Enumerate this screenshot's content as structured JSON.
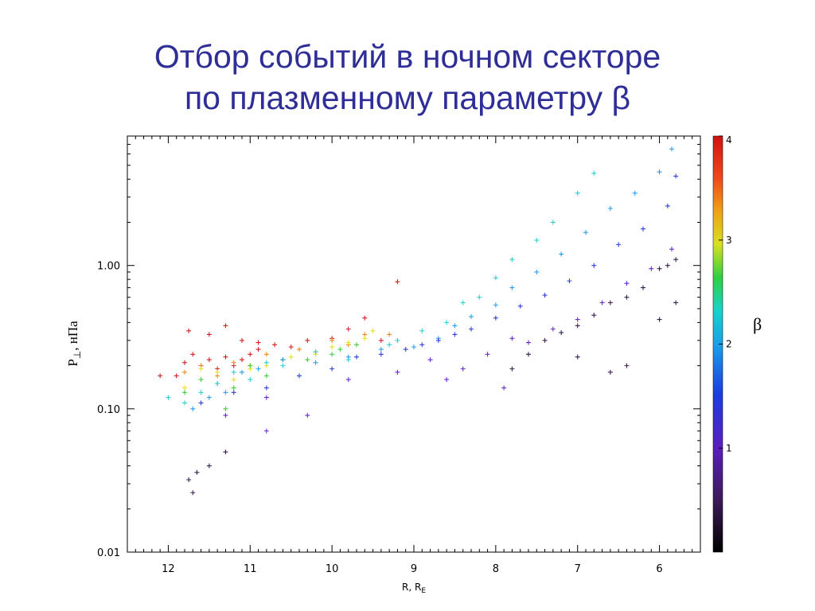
{
  "title_line1": "Отбор событий в ночном секторе",
  "title_line2": "по плазменному параметру β",
  "colors": {
    "title": "#2e2e96"
  },
  "chart_data": {
    "type": "scatter",
    "marker": "plus",
    "x_axis": {
      "label": "R, R_E",
      "label_main": "R, R",
      "label_sub": "E",
      "reversed": true,
      "range": [
        12.5,
        5.5
      ],
      "ticks": [
        12,
        11,
        10,
        9,
        8,
        7,
        6
      ]
    },
    "y_axis": {
      "label": "P⊥, нПа",
      "label_main": "P",
      "label_sub": "⊥",
      "label_rest": ", нПа",
      "scale": "log",
      "range": [
        0.01,
        8
      ],
      "ticks": [
        0.01,
        0.1,
        1.0
      ],
      "tick_labels": [
        "0.01",
        "0.10",
        "1.00"
      ]
    },
    "colorbar": {
      "label": "β",
      "range": [
        0,
        4
      ],
      "ticks": [
        1,
        2,
        3,
        4
      ],
      "tick_labels": [
        "1",
        "2",
        "3",
        "4"
      ]
    },
    "series": [
      {
        "name": "β≈3.6",
        "color": "#d42020",
        "x": [
          12.1,
          11.9,
          11.8,
          11.7,
          11.6,
          11.5,
          11.4,
          11.3,
          11.2,
          11.1,
          11.0,
          10.9,
          10.7,
          10.5,
          10.3,
          10.0,
          9.8,
          9.6,
          9.4,
          9.2,
          11.75,
          11.5,
          11.3,
          11.1,
          10.9
        ],
        "y": [
          0.17,
          0.17,
          0.21,
          0.24,
          0.2,
          0.22,
          0.19,
          0.23,
          0.2,
          0.22,
          0.24,
          0.26,
          0.28,
          0.27,
          0.3,
          0.31,
          0.36,
          0.43,
          0.3,
          0.77,
          0.35,
          0.33,
          0.38,
          0.3,
          0.29
        ]
      },
      {
        "name": "β≈3.0",
        "color": "#f08a1c",
        "x": [
          11.8,
          11.6,
          11.4,
          11.2,
          11.0,
          10.8,
          10.6,
          10.4,
          10.2,
          10.0,
          9.8,
          9.6,
          9.3
        ],
        "y": [
          0.18,
          0.2,
          0.17,
          0.21,
          0.2,
          0.24,
          0.22,
          0.26,
          0.25,
          0.3,
          0.28,
          0.33,
          0.33
        ]
      },
      {
        "name": "β≈2.6",
        "color": "#e8e020",
        "x": [
          11.8,
          11.6,
          11.4,
          11.2,
          11.0,
          10.8,
          10.5,
          10.2,
          10.0,
          9.8,
          9.6,
          9.5
        ],
        "y": [
          0.14,
          0.19,
          0.18,
          0.16,
          0.19,
          0.2,
          0.23,
          0.24,
          0.27,
          0.29,
          0.31,
          0.35
        ]
      },
      {
        "name": "β≈2.2",
        "color": "#3cd23c",
        "x": [
          11.8,
          11.6,
          11.4,
          11.2,
          11.0,
          10.8,
          10.6,
          10.3,
          10.0,
          9.9,
          9.7,
          11.3
        ],
        "y": [
          0.13,
          0.16,
          0.15,
          0.14,
          0.2,
          0.17,
          0.22,
          0.22,
          0.24,
          0.26,
          0.28,
          0.1
        ]
      },
      {
        "name": "β≈1.9",
        "color": "#28d2d2",
        "x": [
          12.0,
          11.8,
          11.6,
          11.4,
          11.2,
          11.0,
          10.8,
          10.6,
          10.2,
          9.8,
          9.3,
          8.9,
          8.4,
          8.0,
          7.8,
          7.5,
          7.3,
          7.0,
          6.8,
          8.2,
          8.6,
          9.2
        ],
        "y": [
          0.12,
          0.11,
          0.13,
          0.15,
          0.18,
          0.16,
          0.21,
          0.2,
          0.25,
          0.22,
          0.28,
          0.35,
          0.55,
          0.82,
          1.1,
          1.5,
          2.0,
          3.2,
          4.4,
          0.6,
          0.4,
          0.3
        ]
      },
      {
        "name": "β≈1.6",
        "color": "#2aa0f0",
        "x": [
          11.7,
          11.5,
          11.3,
          11.1,
          10.9,
          10.6,
          10.2,
          9.8,
          9.4,
          9.0,
          8.7,
          8.5,
          8.3,
          8.0,
          7.8,
          7.5,
          7.2,
          6.9,
          6.6,
          6.3,
          6.0,
          5.85
        ],
        "y": [
          0.1,
          0.12,
          0.13,
          0.18,
          0.19,
          0.22,
          0.21,
          0.23,
          0.26,
          0.27,
          0.31,
          0.38,
          0.44,
          0.53,
          0.7,
          0.9,
          1.2,
          1.7,
          2.5,
          3.2,
          4.5,
          6.5
        ]
      },
      {
        "name": "β≈1.1",
        "color": "#3040e0",
        "x": [
          11.6,
          11.2,
          10.8,
          10.4,
          10.0,
          9.7,
          9.4,
          9.1,
          8.9,
          8.7,
          8.5,
          8.3,
          8.0,
          7.7,
          7.4,
          7.1,
          6.8,
          6.5,
          6.2,
          5.9,
          5.8
        ],
        "y": [
          0.11,
          0.13,
          0.14,
          0.17,
          0.19,
          0.23,
          0.24,
          0.26,
          0.28,
          0.3,
          0.33,
          0.36,
          0.43,
          0.52,
          0.62,
          0.78,
          1.0,
          1.4,
          1.8,
          2.6,
          4.2
        ]
      },
      {
        "name": "β≈0.7",
        "color": "#6a2ccc",
        "x": [
          11.3,
          10.8,
          10.3,
          9.8,
          9.2,
          8.8,
          8.4,
          8.1,
          7.8,
          7.6,
          7.3,
          7.0,
          6.7,
          6.4,
          6.1,
          5.85,
          8.6,
          7.9,
          10.8
        ],
        "y": [
          0.09,
          0.12,
          0.09,
          0.16,
          0.18,
          0.22,
          0.19,
          0.24,
          0.31,
          0.29,
          0.36,
          0.42,
          0.55,
          0.75,
          0.95,
          1.3,
          0.16,
          0.14,
          0.07
        ]
      },
      {
        "name": "β≈0.3",
        "color": "#3a2050",
        "x": [
          11.7,
          11.75,
          11.65,
          11.5,
          11.3,
          7.6,
          7.4,
          7.2,
          7.0,
          6.8,
          6.6,
          6.4,
          6.2,
          6.0,
          5.9,
          5.8,
          7.8,
          7.0,
          6.6,
          6.4,
          6.0,
          5.8
        ],
        "y": [
          0.026,
          0.032,
          0.036,
          0.04,
          0.05,
          0.24,
          0.3,
          0.34,
          0.38,
          0.45,
          0.55,
          0.6,
          0.7,
          0.95,
          1.0,
          1.1,
          0.19,
          0.23,
          0.18,
          0.2,
          0.42,
          0.55
        ]
      }
    ]
  }
}
